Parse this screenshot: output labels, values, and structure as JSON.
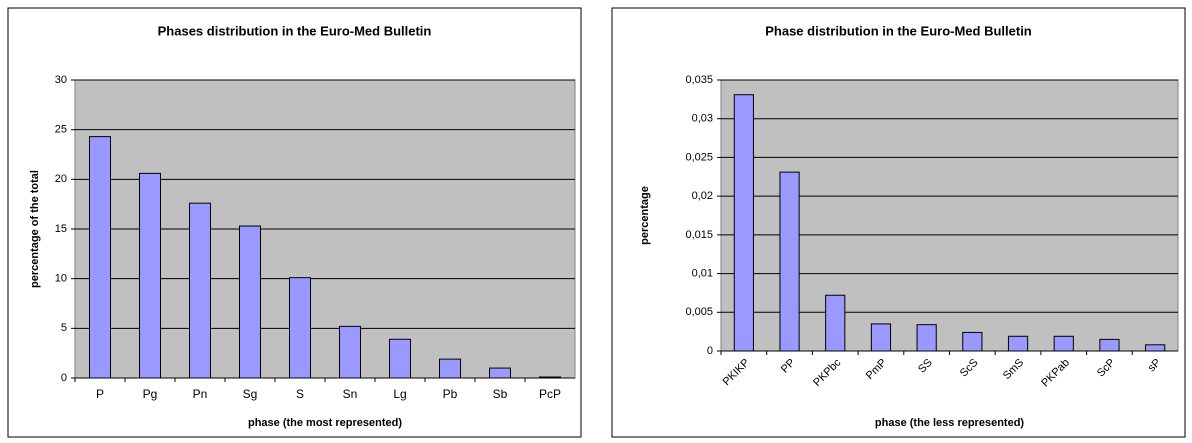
{
  "chart_data": [
    {
      "type": "bar",
      "title": "Phases distribution in the Euro-Med Bulletin",
      "x_label": "phase (the most represented)",
      "y_label": "percentage of the total",
      "categories": [
        "P",
        "Pg",
        "Pn",
        "Sg",
        "S",
        "Sn",
        "Lg",
        "Pb",
        "Sb",
        "PcP"
      ],
      "values": [
        24.3,
        20.6,
        17.6,
        15.3,
        10.1,
        5.2,
        3.9,
        1.9,
        1.0,
        0.1
      ],
      "color": "#9999ff",
      "ylim": [
        0,
        30
      ],
      "yticks": [
        0,
        5,
        10,
        15,
        20,
        25,
        30
      ],
      "grid": true
    },
    {
      "type": "bar",
      "title": "Phase distribution in the Euro-Med Bulletin",
      "x_label": "phase (the less represented)",
      "y_label": "percentage",
      "categories": [
        "PKIKP",
        "PP",
        "PKPbc",
        "PmP",
        "SS",
        "ScS",
        "SmS",
        "PKPab",
        "ScP",
        "sP"
      ],
      "values": [
        0.0331,
        0.0231,
        0.0072,
        0.0035,
        0.0034,
        0.0024,
        0.0019,
        0.0019,
        0.0015,
        0.0008
      ],
      "color": "#9999ff",
      "ylim": [
        0,
        0.035
      ],
      "yticks": [
        0,
        {
          "value": 0.005,
          "label": "0,005"
        },
        {
          "value": 0.01,
          "label": "0,01"
        },
        {
          "value": 0.015,
          "label": "0,015"
        },
        {
          "value": 0.02,
          "label": "0,02"
        },
        {
          "value": 0.025,
          "label": "0,025"
        },
        {
          "value": 0.03,
          "label": "0,03"
        },
        {
          "value": 0.035,
          "label": "0,035"
        }
      ],
      "grid": true
    }
  ]
}
